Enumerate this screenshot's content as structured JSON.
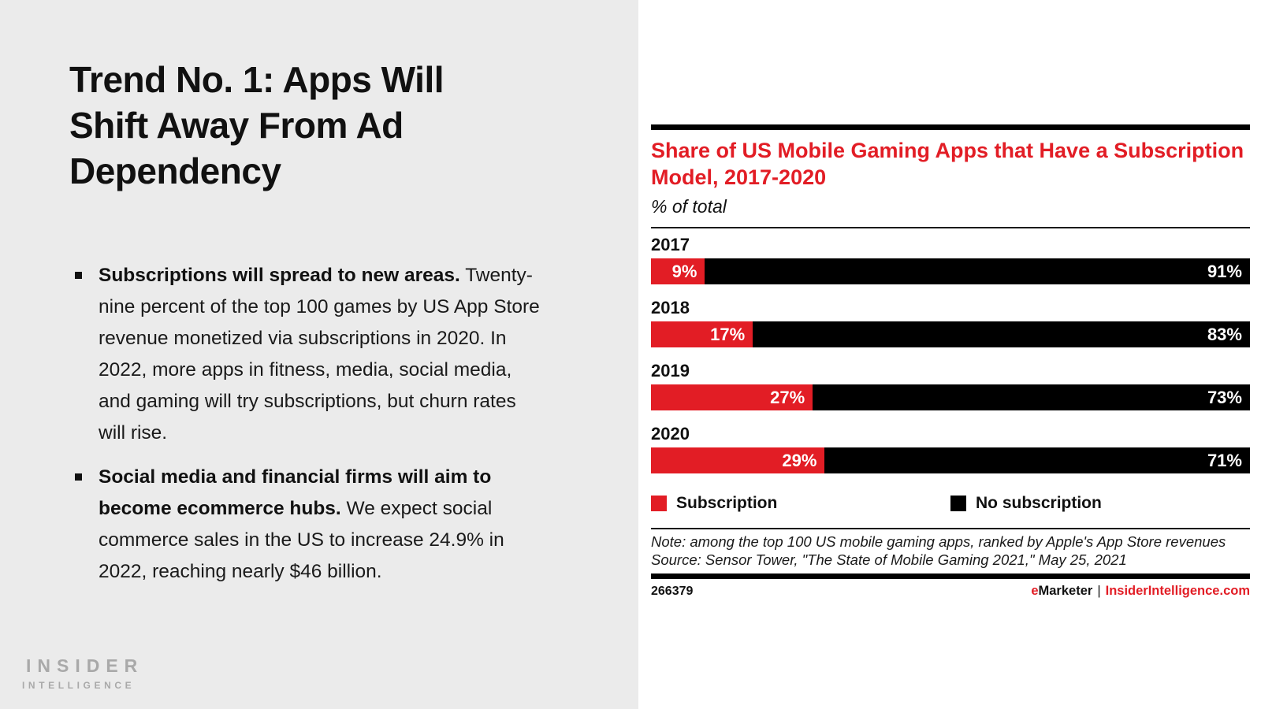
{
  "colors": {
    "red": "#e21d25",
    "black": "#000000",
    "panel_gray": "#ebebeb",
    "logo_gray": "#a9a9a9"
  },
  "slide": {
    "title": "Trend No. 1: Apps Will Shift Away From Ad Dependency",
    "bullets": [
      {
        "bold": "Subscriptions will spread to new areas.",
        "text": " Twenty-nine percent of the top 100 games by US App Store revenue monetized via subscriptions in 2020. In 2022, more apps in fitness, media, social media, and gaming will try subscriptions, but churn rates will rise."
      },
      {
        "bold": "Social media and financial firms will aim to become ecommerce hubs.",
        "text": " We expect social commerce sales in the US to increase 24.9% in 2022, reaching nearly $46 billion."
      }
    ],
    "logo": {
      "line1": "INSIDER",
      "line2": "INTELLIGENCE"
    }
  },
  "chart": {
    "title": "Share of US Mobile Gaming Apps that Have a Subscription Model, 2017-2020",
    "subtitle": "% of total",
    "legend": [
      {
        "label": "Subscription",
        "color": "#e21d25"
      },
      {
        "label": "No subscription",
        "color": "#000000"
      }
    ],
    "note_line1": "Note: among the top 100 US mobile gaming apps, ranked by Apple's App Store revenues",
    "note_line2": "Source: Sensor Tower, \"The State of Mobile Gaming 2021,\" May 25, 2021",
    "chart_id": "266379",
    "footer": {
      "brand_e": "e",
      "brand_rest": "Marketer",
      "divider": "|",
      "site": "InsiderIntelligence.com"
    }
  },
  "chart_data": {
    "type": "bar",
    "orientation": "horizontal",
    "stacked": true,
    "title": "Share of US Mobile Gaming Apps that Have a Subscription Model, 2017-2020",
    "subtitle": "% of total",
    "categories": [
      "2017",
      "2018",
      "2019",
      "2020"
    ],
    "series": [
      {
        "name": "Subscription",
        "color": "#e21d25",
        "values": [
          9,
          17,
          27,
          29
        ]
      },
      {
        "name": "No subscription",
        "color": "#000000",
        "values": [
          91,
          83,
          73,
          71
        ]
      }
    ],
    "value_suffix": "%",
    "xlim": [
      0,
      100
    ],
    "grid": false,
    "legend_position": "bottom",
    "value_labels": "inside-end"
  }
}
